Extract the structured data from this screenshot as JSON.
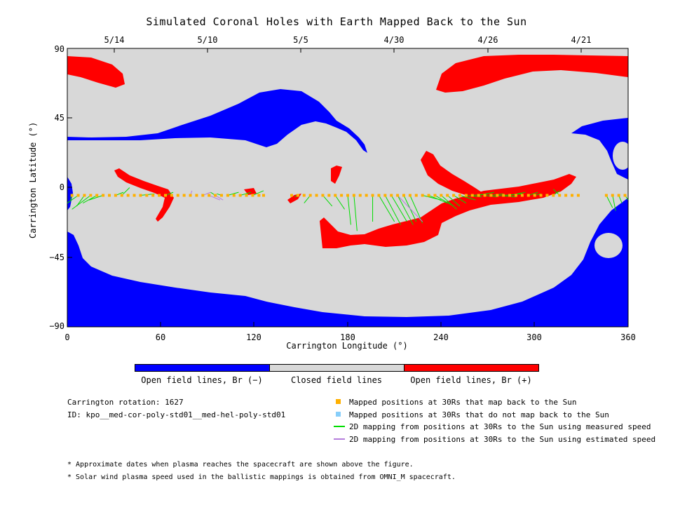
{
  "chart_data": {
    "type": "map",
    "title": "Simulated Coronal Holes with Earth Mapped Back to the Sun",
    "xlabel": "Carrington Longitude (°)",
    "ylabel": "Carrington Latitude (°)",
    "xlim": [
      0,
      360
    ],
    "ylim": [
      -90,
      90
    ],
    "x_ticks": [
      "0",
      "60",
      "120",
      "180",
      "240",
      "300",
      "360"
    ],
    "y_ticks": [
      "90",
      "45",
      "0",
      "−45",
      "−90"
    ],
    "top_date_ticks": [
      {
        "label": "5/14",
        "lon": 30
      },
      {
        "label": "5/10",
        "lon": 90
      },
      {
        "label": "5/5",
        "lon": 150
      },
      {
        "label": "4/30",
        "lon": 210
      },
      {
        "label": "4/26",
        "lon": 270
      },
      {
        "label": "4/21",
        "lon": 330
      }
    ],
    "colorbar": [
      {
        "label": "Open field lines, Br (−)",
        "color": "#0000ff"
      },
      {
        "label": "Closed field lines",
        "color": "#d8d8d8"
      },
      {
        "label": "Open field lines, Br (+)",
        "color": "#ff0000"
      }
    ],
    "mapped_lat": -5,
    "mapped_positions": [
      3,
      7,
      11,
      15,
      19,
      23,
      27,
      31,
      35,
      39,
      43,
      47,
      51,
      55,
      59,
      63,
      67,
      71,
      75,
      79,
      83,
      87,
      91,
      95,
      99,
      103,
      107,
      111,
      115,
      119,
      123,
      126,
      144,
      148,
      152,
      156,
      160,
      164,
      168,
      172,
      176,
      180,
      184,
      188,
      192,
      196,
      200,
      204,
      208,
      212,
      216,
      220,
      224,
      228,
      232,
      236,
      240,
      244,
      248,
      252,
      256,
      260,
      264,
      268,
      272,
      276,
      280,
      284,
      288,
      292,
      296,
      300,
      304,
      308,
      312,
      316,
      320,
      324,
      328,
      346,
      350,
      354,
      358
    ],
    "measured_speed_mappings": [
      [
        3,
        2,
        -8
      ],
      [
        7,
        0,
        -10
      ],
      [
        11,
        6,
        -12
      ],
      [
        15,
        3,
        -14
      ],
      [
        19,
        10,
        -10
      ],
      [
        23,
        14,
        -8
      ],
      [
        31,
        36,
        -3
      ],
      [
        35,
        40,
        0
      ],
      [
        47,
        56,
        -4
      ],
      [
        63,
        68,
        -3
      ],
      [
        95,
        92,
        -3
      ],
      [
        99,
        96,
        -4
      ],
      [
        103,
        110,
        -3
      ],
      [
        111,
        118,
        -3
      ],
      [
        119,
        126,
        -2
      ],
      [
        148,
        146,
        -6
      ],
      [
        156,
        152,
        -10
      ],
      [
        164,
        170,
        -12
      ],
      [
        172,
        178,
        -14
      ],
      [
        180,
        182,
        -24
      ],
      [
        184,
        186,
        -28
      ],
      [
        196,
        196,
        -22
      ],
      [
        200,
        210,
        -22
      ],
      [
        204,
        214,
        -24
      ],
      [
        208,
        218,
        -22
      ],
      [
        212,
        222,
        -24
      ],
      [
        216,
        224,
        -22
      ],
      [
        220,
        228,
        -23
      ],
      [
        228,
        240,
        -8
      ],
      [
        232,
        244,
        -10
      ],
      [
        236,
        248,
        -12
      ],
      [
        240,
        250,
        -14
      ],
      [
        244,
        252,
        -12
      ],
      [
        248,
        256,
        -10
      ],
      [
        252,
        262,
        -8
      ],
      [
        256,
        266,
        -6
      ],
      [
        260,
        270,
        -4
      ],
      [
        264,
        274,
        -3
      ],
      [
        268,
        276,
        -6
      ],
      [
        272,
        280,
        -4
      ],
      [
        276,
        288,
        -6
      ],
      [
        280,
        292,
        -4
      ],
      [
        284,
        294,
        -3
      ],
      [
        296,
        302,
        -3
      ],
      [
        300,
        304,
        -4
      ],
      [
        312,
        316,
        -2
      ],
      [
        316,
        312,
        -1
      ],
      [
        346,
        350,
        -13
      ],
      [
        350,
        352,
        -15
      ],
      [
        354,
        356,
        -10
      ],
      [
        358,
        360,
        -8
      ]
    ],
    "estimated_speed_mappings": [
      [
        79,
        80,
        -2
      ],
      [
        87,
        92,
        -3
      ],
      [
        91,
        98,
        -8
      ],
      [
        95,
        100,
        -8
      ],
      [
        212,
        228,
        -22
      ]
    ],
    "legend": [
      {
        "label": "Mapped positions at 30Rs that map back to the Sun",
        "color": "#ffb000"
      },
      {
        "label": "Mapped positions at 30Rs that do not map back to the Sun",
        "color": "#87cefa"
      },
      {
        "label": "2D mapping from positions at 30Rs to the Sun using measured speed",
        "color": "#00dd00"
      },
      {
        "label": "2D mapping from positions at 30Rs to the Sun using estimated speed",
        "color": "#b57edc"
      }
    ],
    "info_lines": [
      "Carrington rotation: 1627",
      "ID: kpo__med-cor-poly-std01__med-hel-poly-std01"
    ],
    "notes": [
      "* Approximate dates when plasma reaches the spacecraft are shown above the figure.",
      "* Solar wind plasma speed used in the ballistic mappings is obtained from OMNI_M spacecraft."
    ]
  }
}
